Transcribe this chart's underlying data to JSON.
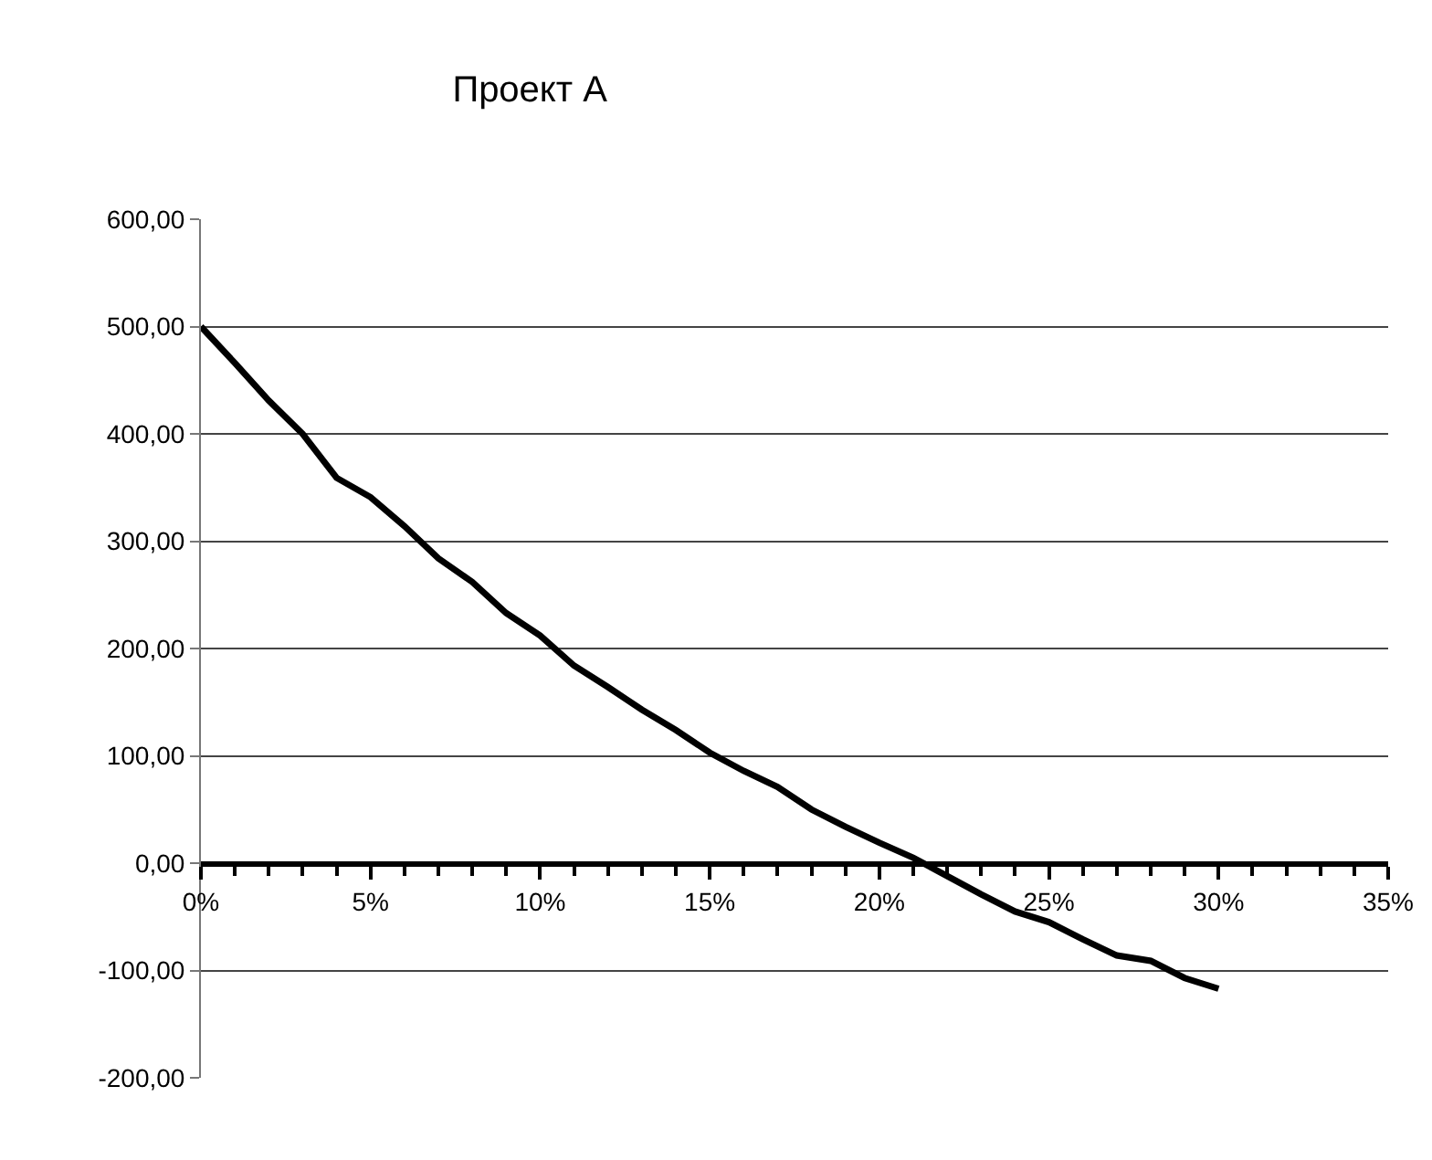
{
  "chart_data": {
    "type": "line",
    "title": "Проект А",
    "x": [
      0,
      1,
      2,
      3,
      4,
      5,
      6,
      7,
      8,
      9,
      10,
      11,
      12,
      13,
      14,
      15,
      16,
      17,
      18,
      19,
      20,
      21,
      22,
      23,
      24,
      25,
      26,
      27,
      28,
      29,
      30
    ],
    "series": [
      {
        "color": "#000000",
        "values": [
          500,
          466,
          431,
          400,
          359,
          341,
          314,
          284,
          262,
          233,
          212,
          184,
          164,
          143,
          124,
          103,
          86,
          71,
          50,
          34,
          19,
          5,
          -12,
          -29,
          -45,
          -55,
          -71,
          -86,
          -91,
          -107,
          -117
        ]
      }
    ],
    "xlim": [
      0,
      35
    ],
    "xticks": [
      {
        "value": 0,
        "label": "0%"
      },
      {
        "value": 5,
        "label": "5%"
      },
      {
        "value": 10,
        "label": "10%"
      },
      {
        "value": 15,
        "label": "15%"
      },
      {
        "value": 20,
        "label": "20%"
      },
      {
        "value": 25,
        "label": "25%"
      },
      {
        "value": 30,
        "label": "30%"
      },
      {
        "value": 35,
        "label": "35%"
      }
    ],
    "ylim": [
      -200,
      600
    ],
    "yticks": [
      {
        "value": -200,
        "label": "-200,00"
      },
      {
        "value": -100,
        "label": "-100,00"
      },
      {
        "value": 0,
        "label": "0,00"
      },
      {
        "value": 100,
        "label": "100,00"
      },
      {
        "value": 200,
        "label": "200,00"
      },
      {
        "value": 300,
        "label": "300,00"
      },
      {
        "value": 400,
        "label": "400,00"
      },
      {
        "value": 500,
        "label": "500,00"
      },
      {
        "value": 600,
        "label": "600,00"
      }
    ],
    "grid": "y",
    "marker": "none",
    "line_style": "solid"
  }
}
